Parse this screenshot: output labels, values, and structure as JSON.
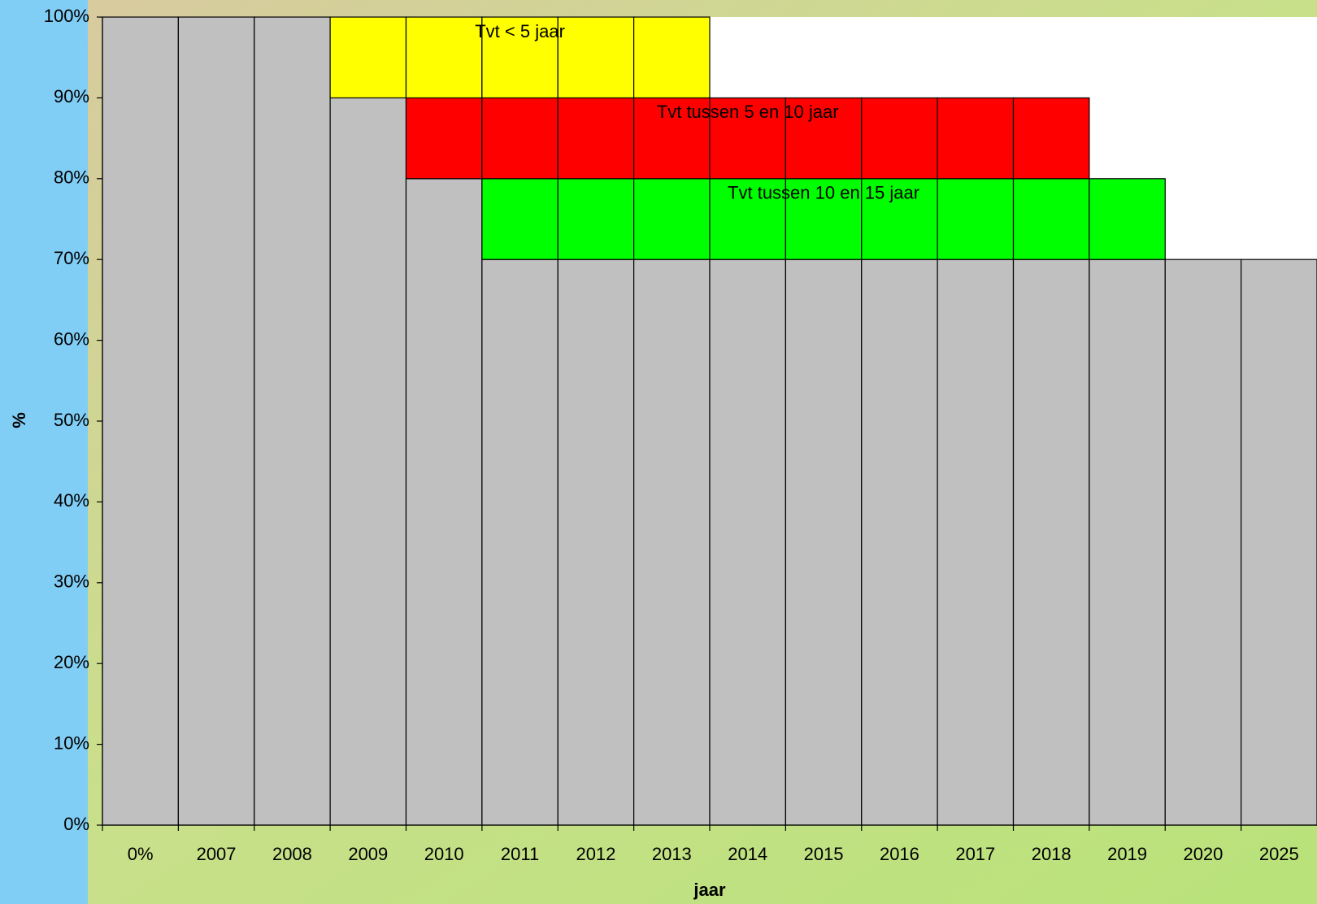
{
  "chart_data": {
    "type": "stacked_bar",
    "x_label": "jaar",
    "y_label": "%",
    "categories": [
      "0%",
      "2007",
      "2008",
      "2009",
      "2010",
      "2011",
      "2012",
      "2013",
      "2014",
      "2015",
      "2016",
      "2017",
      "2018",
      "2019",
      "2020",
      "2025"
    ],
    "series": [
      {
        "color": "#c0c0c0",
        "values": [
          100,
          100,
          100,
          90,
          80,
          70,
          70,
          70,
          70,
          70,
          70,
          70,
          70,
          70,
          70,
          70
        ]
      },
      {
        "name": "Tvt tussen 10 en 15 jaar",
        "color": "#00ff00",
        "values": [
          null,
          null,
          null,
          null,
          null,
          10,
          10,
          10,
          10,
          10,
          10,
          10,
          10,
          10,
          null,
          null
        ]
      },
      {
        "name": "Tvt tussen 5 en 10 jaar",
        "color": "#ff0000",
        "values": [
          null,
          null,
          null,
          null,
          10,
          10,
          10,
          10,
          10,
          10,
          10,
          10,
          10,
          null,
          null,
          null
        ]
      },
      {
        "name": "Tvt < 5 jaar",
        "color": "#ffff00",
        "values": [
          null,
          null,
          null,
          10,
          10,
          10,
          10,
          10,
          null,
          null,
          null,
          null,
          null,
          null,
          null,
          null
        ]
      }
    ],
    "ylim": [
      0,
      100
    ],
    "yticks": [
      {
        "value": 0,
        "label": "0%"
      },
      {
        "value": 10,
        "label": "10%"
      },
      {
        "value": 20,
        "label": "20%"
      },
      {
        "value": 30,
        "label": "30%"
      },
      {
        "value": 40,
        "label": "40%"
      },
      {
        "value": 50,
        "label": "50%"
      },
      {
        "value": 60,
        "label": "60%"
      },
      {
        "value": 70,
        "label": "70%"
      },
      {
        "value": 80,
        "label": "80%"
      },
      {
        "value": 90,
        "label": "90%"
      },
      {
        "value": 100,
        "label": "100%"
      }
    ]
  }
}
